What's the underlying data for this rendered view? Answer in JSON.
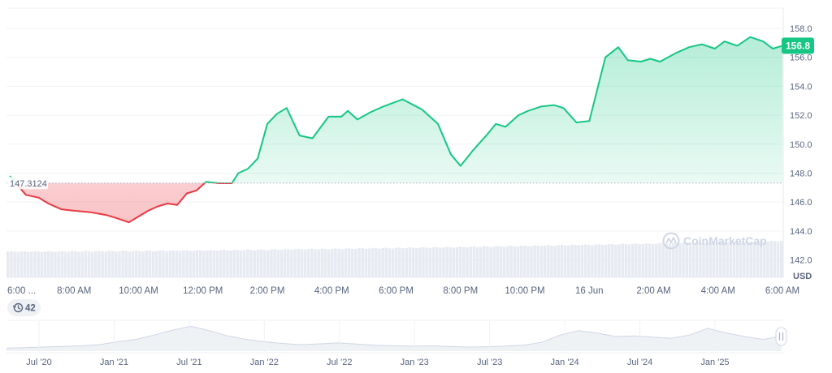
{
  "chart_data": {
    "type": "area",
    "currency_label": "USD",
    "current_price_label": "156.8",
    "current_price": 156.8,
    "reference_price_label": "147.3124",
    "reference_price": 147.3124,
    "ylim": [
      140.8,
      159.4
    ],
    "y_ticks": [
      "158.0",
      "156.0",
      "154.0",
      "152.0",
      "150.0",
      "148.0",
      "146.0",
      "144.0",
      "142.0"
    ],
    "y_tick_values": [
      158,
      156,
      154,
      152,
      150,
      148,
      146,
      144,
      142
    ],
    "x_tick_labels": [
      "6:00 ...",
      "8:00 AM",
      "10:00 AM",
      "12:00 PM",
      "2:00 PM",
      "4:00 PM",
      "6:00 PM",
      "8:00 PM",
      "10:00 PM",
      "16 Jun",
      "2:00 AM",
      "4:00 AM",
      "6:00 AM"
    ],
    "x_tick_hours": [
      0,
      2,
      4,
      6,
      8,
      10,
      12,
      14,
      16,
      18,
      20,
      22,
      24
    ],
    "series": [
      {
        "x_hours": [
          0,
          0.2,
          0.5,
          0.9,
          1.2,
          1.6,
          2.0,
          2.5,
          3.0,
          3.3,
          3.7,
          4.0,
          4.3,
          4.6,
          4.9,
          5.2,
          5.5,
          5.8,
          6.1,
          6.5,
          6.9,
          7.1,
          7.4,
          7.7,
          8.0,
          8.3,
          8.6,
          9.0,
          9.4,
          9.9,
          10.3,
          10.5,
          10.8,
          11.2,
          11.6,
          12.2,
          12.8,
          13.3,
          13.7,
          14.0,
          14.4,
          14.8,
          15.1,
          15.4,
          15.8,
          16.1,
          16.5,
          16.9,
          17.2,
          17.6,
          18.0,
          18.5,
          18.9,
          19.2,
          19.6,
          19.9,
          20.2,
          20.7,
          21.1,
          21.5,
          21.9,
          22.2,
          22.6,
          23.0,
          23.4,
          23.7,
          24.0
        ],
        "price": [
          147.8,
          147.3,
          146.5,
          146.3,
          145.9,
          145.5,
          145.4,
          145.3,
          145.1,
          144.9,
          144.6,
          145.0,
          145.4,
          145.7,
          145.9,
          145.8,
          146.6,
          146.8,
          147.4,
          147.3,
          147.3,
          148.0,
          148.3,
          149.0,
          151.4,
          152.1,
          152.5,
          150.6,
          150.4,
          151.9,
          151.9,
          152.3,
          151.7,
          152.2,
          152.6,
          153.1,
          152.4,
          151.4,
          149.3,
          148.5,
          149.6,
          150.6,
          151.4,
          151.2,
          152.0,
          152.3,
          152.6,
          152.7,
          152.5,
          151.5,
          151.6,
          156.0,
          156.7,
          155.8,
          155.7,
          155.9,
          155.7,
          156.3,
          156.7,
          156.9,
          156.6,
          157.1,
          156.8,
          157.4,
          157.1,
          156.6,
          156.8
        ]
      }
    ],
    "volume_band": {
      "min_fraction": 0.35,
      "max_fraction": 0.82
    },
    "watermark": "CoinMarketCap",
    "navigator": {
      "range_badge": "42",
      "x_tick_labels": [
        "Jul '20",
        "Jan '21",
        "Jul '21",
        "Jan '22",
        "Jul '22",
        "Jan '23",
        "Jul '23",
        "Jan '24",
        "Jul '24",
        "Jan '25"
      ],
      "profile": [
        0.1,
        0.12,
        0.14,
        0.16,
        0.18,
        0.22,
        0.32,
        0.4,
        0.55,
        0.72,
        0.85,
        0.7,
        0.52,
        0.4,
        0.32,
        0.26,
        0.22,
        0.25,
        0.28,
        0.24,
        0.2,
        0.18,
        0.17,
        0.18,
        0.16,
        0.14,
        0.15,
        0.17,
        0.2,
        0.3,
        0.55,
        0.7,
        0.62,
        0.5,
        0.52,
        0.48,
        0.44,
        0.55,
        0.78,
        0.62,
        0.5,
        0.4,
        0.52
      ]
    },
    "colors": {
      "up": "#16c784",
      "down": "#ea3943",
      "up_fill": "#16c784",
      "down_fill": "#ea3943",
      "grid": "#eff2f5",
      "text": "#58667e"
    }
  }
}
